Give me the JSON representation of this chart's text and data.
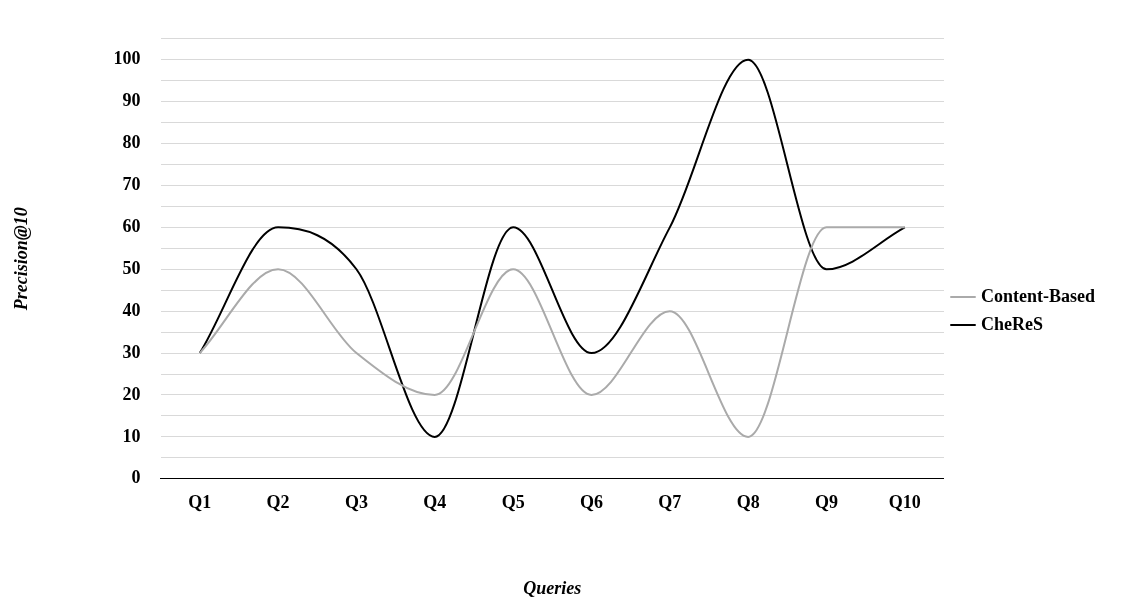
{
  "chart_data": {
    "type": "line",
    "xlabel": "Queries",
    "ylabel": "Precision@10",
    "categories": [
      "Q1",
      "Q2",
      "Q3",
      "Q4",
      "Q5",
      "Q6",
      "Q7",
      "Q8",
      "Q9",
      "Q10"
    ],
    "series": [
      {
        "name": "Content-Based",
        "color": "#aaaaaa",
        "values": [
          30,
          50,
          30,
          20,
          50,
          20,
          40,
          10,
          60,
          60
        ]
      },
      {
        "name": "CheReS",
        "color": "#000000",
        "values": [
          30,
          60,
          50,
          10,
          60,
          30,
          60,
          100,
          50,
          60
        ]
      }
    ],
    "ylim": [
      0,
      105
    ],
    "yticks": [
      0,
      {
        "value": 5,
        "label": null
      },
      10,
      {
        "value": 15,
        "label": null
      },
      20,
      {
        "value": 25,
        "label": null
      },
      30,
      {
        "value": 35,
        "label": null
      },
      40,
      {
        "value": 45,
        "label": null
      },
      50,
      {
        "value": 55,
        "label": null
      },
      60,
      {
        "value": 65,
        "label": null
      },
      70,
      {
        "value": 75,
        "label": null
      },
      80,
      {
        "value": 85,
        "label": null
      },
      90,
      {
        "value": 95,
        "label": null
      },
      100,
      {
        "value": 105,
        "label": null
      }
    ],
    "grid": "y",
    "legend": "right",
    "marker": "none",
    "line_style": "solid"
  }
}
